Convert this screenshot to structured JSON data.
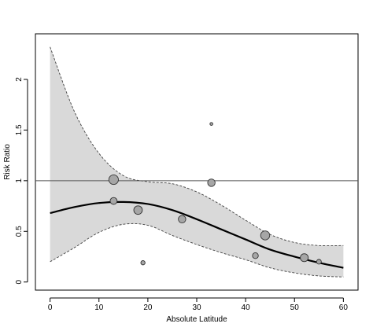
{
  "chart_data": {
    "type": "scatter",
    "title": "",
    "xlabel": "Absolute Latitude",
    "ylabel": "Risk Ratio",
    "xlim": [
      -3,
      63
    ],
    "ylim": [
      -0.08,
      2.45
    ],
    "xticks": [
      0,
      10,
      20,
      30,
      40,
      50,
      60
    ],
    "yticks": [
      0,
      0.5,
      1,
      1.5,
      2
    ],
    "x_tick_labels": [
      "0",
      "10",
      "20",
      "30",
      "40",
      "50",
      "60"
    ],
    "y_tick_labels": [
      "0",
      "0.5",
      "1",
      "1.5",
      "2"
    ],
    "reference_line": 1,
    "grid": false,
    "points": [
      {
        "x": 13,
        "y": 1.01,
        "weight": 3.0
      },
      {
        "x": 13,
        "y": 0.8,
        "weight": 2.0
      },
      {
        "x": 18,
        "y": 0.71,
        "weight": 2.6
      },
      {
        "x": 19,
        "y": 0.19,
        "weight": 1.0
      },
      {
        "x": 27,
        "y": 0.62,
        "weight": 2.2
      },
      {
        "x": 33,
        "y": 1.56,
        "weight": 0.5
      },
      {
        "x": 33,
        "y": 0.98,
        "weight": 2.2
      },
      {
        "x": 42,
        "y": 0.26,
        "weight": 1.6
      },
      {
        "x": 44,
        "y": 0.46,
        "weight": 2.8
      },
      {
        "x": 52,
        "y": 0.24,
        "weight": 2.4
      },
      {
        "x": 55,
        "y": 0.2,
        "weight": 1.2
      }
    ],
    "fit_line": {
      "x": [
        0,
        5,
        10,
        15,
        20,
        25,
        30,
        35,
        40,
        45,
        50,
        55,
        60
      ],
      "y": [
        0.68,
        0.74,
        0.78,
        0.79,
        0.77,
        0.71,
        0.62,
        0.52,
        0.42,
        0.32,
        0.25,
        0.19,
        0.14
      ]
    },
    "ci_upper": {
      "x": [
        0,
        5,
        10,
        15,
        20,
        25,
        30,
        35,
        40,
        45,
        50,
        55,
        60
      ],
      "y": [
        2.32,
        1.68,
        1.27,
        1.05,
        0.99,
        0.97,
        0.89,
        0.76,
        0.61,
        0.47,
        0.39,
        0.36,
        0.36
      ]
    },
    "ci_lower": {
      "x": [
        0,
        5,
        10,
        15,
        20,
        25,
        30,
        35,
        40,
        45,
        50,
        55,
        60
      ],
      "y": [
        0.2,
        0.34,
        0.49,
        0.57,
        0.56,
        0.46,
        0.37,
        0.29,
        0.22,
        0.14,
        0.09,
        0.06,
        0.05
      ]
    },
    "colors": {
      "band_fill": "#d9d9d9",
      "band_border": "#404040",
      "fit_line": "#000000",
      "point_fill": "#a6a6a6",
      "point_stroke": "#333333",
      "reference_line": "#555555",
      "axis": "#000000"
    }
  }
}
